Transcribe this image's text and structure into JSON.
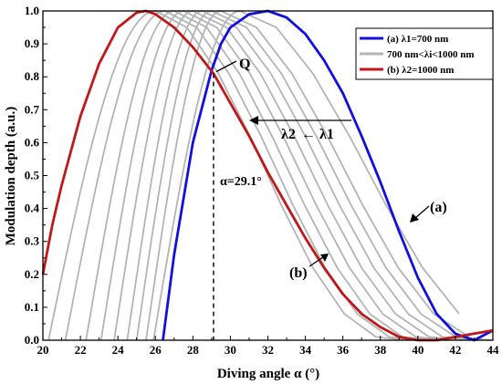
{
  "chart_data": {
    "type": "line",
    "xlabel": "Diving angle α (°)",
    "ylabel": "Modulation depth (a.u.)",
    "xlim": [
      20,
      44
    ],
    "ylim": [
      0.0,
      1.0
    ],
    "xticks": [
      "20",
      "22",
      "24",
      "26",
      "28",
      "30",
      "32",
      "34",
      "36",
      "38",
      "40",
      "42",
      "44"
    ],
    "yticks": [
      "0.0",
      "0.1",
      "0.2",
      "0.3",
      "0.4",
      "0.5",
      "0.6",
      "0.7",
      "0.8",
      "0.9",
      "1.0"
    ],
    "grid": false,
    "legend_position": "top-right",
    "series": [
      {
        "name": "(a) λ1=700 nm",
        "color": "#1010e0",
        "x": [
          26.4,
          27.0,
          28.0,
          29.0,
          29.5,
          30.0,
          31.0,
          32.0,
          33.0,
          34.0,
          35.0,
          36.0,
          37.0,
          38.0,
          39.0,
          40.0,
          41.0,
          42.0,
          43.0,
          44.0
        ],
        "values": [
          0.0,
          0.26,
          0.6,
          0.82,
          0.9,
          0.95,
          0.99,
          1.0,
          0.98,
          0.93,
          0.85,
          0.75,
          0.62,
          0.48,
          0.33,
          0.19,
          0.08,
          0.02,
          0.0,
          0.03
        ]
      },
      {
        "name": "(b) λ2=1000 nm",
        "color": "#c01818",
        "x": [
          20.0,
          20.5,
          21.0,
          22.0,
          23.0,
          24.0,
          25.0,
          25.5,
          26.0,
          27.0,
          28.0,
          29.1,
          30.0,
          31.0,
          32.0,
          33.0,
          34.0,
          35.0,
          36.0,
          37.0,
          38.0,
          39.0,
          40.0,
          41.0,
          42.0,
          43.0,
          44.0
        ],
        "values": [
          0.2,
          0.35,
          0.47,
          0.68,
          0.84,
          0.95,
          0.995,
          1.0,
          0.99,
          0.95,
          0.89,
          0.81,
          0.72,
          0.62,
          0.51,
          0.41,
          0.31,
          0.22,
          0.14,
          0.08,
          0.04,
          0.01,
          0.0,
          0.0,
          0.01,
          0.02,
          0.03
        ]
      },
      {
        "name": "700 nm<λi<1000 nm",
        "color": "#b4b4b4",
        "values": [],
        "peaks": [
          26.0,
          26.5,
          27.0,
          27.5,
          28.0,
          28.5,
          29.0,
          29.5,
          30.5
        ],
        "starts": [
          20.3,
          21.2,
          22.3,
          23.1,
          23.8,
          24.5,
          25.0,
          25.5,
          25.9
        ]
      }
    ],
    "annotations": {
      "q_label": "Q",
      "q_point": [
        29.1,
        0.81
      ],
      "alpha_label": "α=29.1°",
      "alpha_x": 29.1,
      "lambda2": "λ2",
      "arrow_symbol": "←",
      "lambda1": "λ1",
      "label_a": "(a)",
      "label_b": "(b)"
    }
  }
}
